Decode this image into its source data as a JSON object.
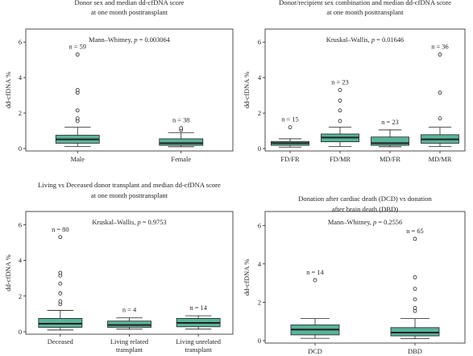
{
  "chart_data": [
    {
      "type": "box",
      "title": [
        "Donor sex and median dd-cfDNA score",
        "at one month posttransplant"
      ],
      "ylabel": "dd-cfDNA %",
      "ylim": [
        0,
        6.6
      ],
      "yticks": [
        "0",
        "2",
        "4",
        "6"
      ],
      "test": "Mann–Whitney, ",
      "p_label": "p",
      "p_value": " = 0.003064",
      "groups": [
        {
          "label": "Male",
          "n_label": "n = 59",
          "whislo": 0.12,
          "q1": 0.3,
          "median": 0.52,
          "q3": 0.75,
          "whishi": 1.2,
          "outliers": [
            1.55,
            1.7,
            2.15,
            3.15,
            3.3,
            5.3
          ]
        },
        {
          "label": "Female",
          "n_label": "n = 38",
          "whislo": 0.1,
          "q1": 0.18,
          "median": 0.3,
          "q3": 0.55,
          "whishi": 0.9,
          "outliers": [
            1.05,
            1.15
          ]
        }
      ]
    },
    {
      "type": "box",
      "title": [
        "Donor/recipient sex combination and median dd-cfDNA score",
        "at one month posttransplant"
      ],
      "ylabel": "dd-cfDNA %",
      "ylim": [
        0,
        6.6
      ],
      "yticks": [
        "0",
        "2",
        "4",
        "6"
      ],
      "test": "Kruskal–Wallis, ",
      "p_label": "p",
      "p_value": " = 0.01646",
      "groups": [
        {
          "label": "FD/FR",
          "n_label": "n = 15",
          "whislo": 0.08,
          "q1": 0.18,
          "median": 0.3,
          "q3": 0.4,
          "whishi": 0.55,
          "outliers": [
            1.2
          ]
        },
        {
          "label": "FD/MR",
          "n_label": "n = 23",
          "whislo": 0.12,
          "q1": 0.38,
          "median": 0.62,
          "q3": 0.82,
          "whishi": 1.2,
          "outliers": [
            1.55,
            2.15,
            2.7,
            3.3
          ]
        },
        {
          "label": "MD/FR",
          "n_label": "n = 23",
          "whislo": 0.1,
          "q1": 0.18,
          "median": 0.3,
          "q3": 0.65,
          "whishi": 1.05,
          "outliers": []
        },
        {
          "label": "MD/MR",
          "n_label": "n = 36",
          "whislo": 0.12,
          "q1": 0.3,
          "median": 0.52,
          "q3": 0.78,
          "whishi": 1.2,
          "outliers": [
            1.7,
            3.15,
            5.3
          ]
        }
      ]
    },
    {
      "type": "box",
      "title": [
        "Living vs Deceased donor transplant and median dd-cfDNA score",
        "at one month posttransplant"
      ],
      "ylabel": "dd-cfDNA %",
      "ylim": [
        0,
        6.6
      ],
      "yticks": [
        "0",
        "2",
        "4",
        "6"
      ],
      "test": "Kruskal–Wallis, ",
      "p_label": "p",
      "p_value": " = 0.9753",
      "groups": [
        {
          "label": "Deceased",
          "n_label": "n = 80",
          "whislo": 0.1,
          "q1": 0.25,
          "median": 0.45,
          "q3": 0.75,
          "whishi": 1.2,
          "outliers": [
            1.55,
            1.7,
            2.15,
            2.7,
            3.15,
            3.3,
            5.3
          ]
        },
        {
          "label": "Living related\ntransplant",
          "n_label": "n = 4",
          "whislo": 0.15,
          "q1": 0.25,
          "median": 0.38,
          "q3": 0.6,
          "whishi": 0.78,
          "outliers": []
        },
        {
          "label": "Living unrelated\ntransplant",
          "n_label": "n = 14",
          "whislo": 0.15,
          "q1": 0.28,
          "median": 0.5,
          "q3": 0.75,
          "whishi": 0.9,
          "outliers": []
        }
      ]
    },
    {
      "type": "box",
      "title": [
        "Donation after cardiac death (DCD) vs donation",
        "after brain death (DBD)"
      ],
      "ylabel": "dd-cfDNA %",
      "ylim": [
        0,
        6.6
      ],
      "yticks": [
        "0",
        "2",
        "4",
        "6"
      ],
      "test": "Mann–Whitney, ",
      "p_label": "p",
      "p_value": " = 0.2556",
      "groups": [
        {
          "label": "DCD",
          "n_label": "n = 14",
          "whislo": 0.12,
          "q1": 0.3,
          "median": 0.58,
          "q3": 0.82,
          "whishi": 1.15,
          "outliers": [
            3.15
          ]
        },
        {
          "label": "DBD",
          "n_label": "n = 65",
          "whislo": 0.1,
          "q1": 0.25,
          "median": 0.42,
          "q3": 0.68,
          "whishi": 1.15,
          "outliers": [
            1.55,
            1.7,
            2.15,
            2.7,
            3.3,
            5.3
          ]
        }
      ]
    }
  ]
}
